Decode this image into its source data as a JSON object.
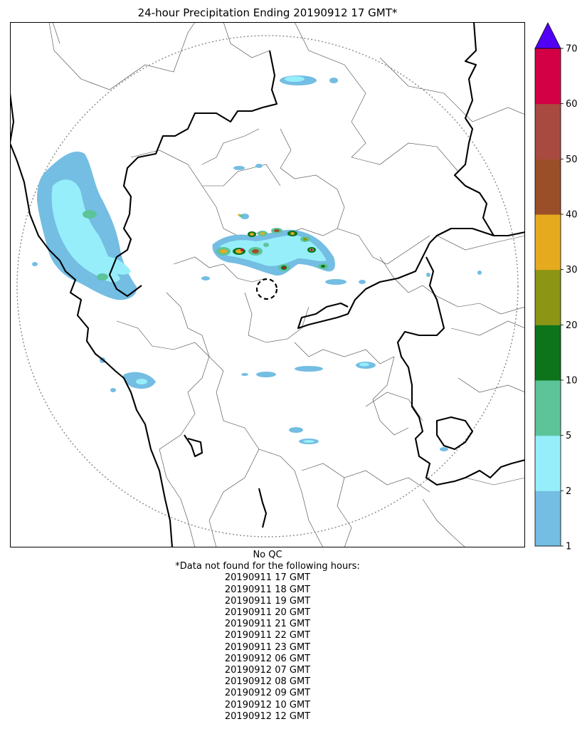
{
  "title": "24-hour Precipitation Ending 20190912 17 GMT*",
  "qc_status": "No QC",
  "missing_header": "*Data not found for the following hours:",
  "missing_hours": [
    "20190911 17 GMT",
    "20190911 18 GMT",
    "20190911 19 GMT",
    "20190911 20 GMT",
    "20190911 21 GMT",
    "20190911 22 GMT",
    "20190911 23 GMT",
    "20190912 06 GMT",
    "20190912 07 GMT",
    "20190912 08 GMT",
    "20190912 09 GMT",
    "20190912 10 GMT",
    "20190912 12 GMT"
  ],
  "colorbar": {
    "bounds": [
      1,
      2,
      5,
      10,
      20,
      30,
      40,
      50,
      60,
      70
    ],
    "colors": [
      "#74bde3",
      "#96eefa",
      "#5cc498",
      "#0d741c",
      "#8c9514",
      "#e6aa1e",
      "#9b4f29",
      "#a94a40",
      "#d40046"
    ],
    "extend_color": "#5200f5"
  }
}
